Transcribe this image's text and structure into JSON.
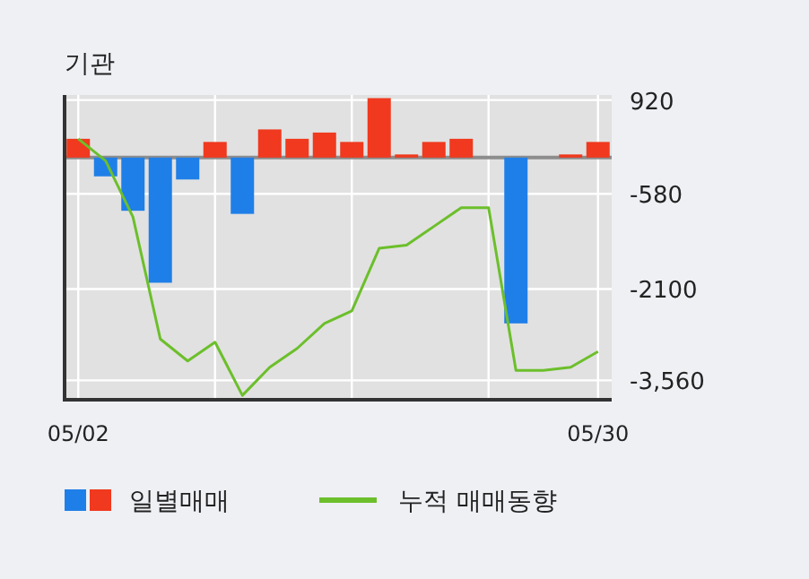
{
  "chart_data": {
    "type": "bar",
    "title": "기관",
    "categories": [
      "05/02",
      null,
      null,
      null,
      null,
      null,
      null,
      null,
      null,
      null,
      null,
      null,
      null,
      null,
      null,
      null,
      null,
      null,
      null,
      "05/30"
    ],
    "series": [
      {
        "name": "일별매매",
        "values": [
          300,
          -300,
          -850,
          -2000,
          -350,
          250,
          -900,
          450,
          300,
          400,
          250,
          950,
          50,
          250,
          300,
          0,
          -2650,
          0,
          50,
          250
        ],
        "colors": [
          "#f0391e",
          "#1f7fe8",
          "#1f7fe8",
          "#1f7fe8",
          "#1f7fe8",
          "#f0391e",
          "#1f7fe8",
          "#f0391e",
          "#f0391e",
          "#f0391e",
          "#f0391e",
          "#f0391e",
          "#f0391e",
          "#f0391e",
          "#f0391e",
          "#f0391e",
          "#1f7fe8",
          "#f0391e",
          "#f0391e",
          "#f0391e"
        ]
      },
      {
        "name": "누적 매매동향",
        "type": "line",
        "color": "#6cbf2b",
        "values": [
          300,
          -50,
          -950,
          -2900,
          -3250,
          -2950,
          -3800,
          -3350,
          -3050,
          -2650,
          -2450,
          -1450,
          -1400,
          -1100,
          -800,
          -800,
          -3400,
          -3400,
          -3350,
          -3100
        ]
      }
    ],
    "ylim": [
      -3870,
      1000
    ],
    "yticks": [
      920,
      -580,
      -2100,
      {
        "value": -3560,
        "label": "-3,560"
      }
    ],
    "grid": true,
    "legend": "bottom",
    "marker": "none",
    "line_style": "solid"
  }
}
